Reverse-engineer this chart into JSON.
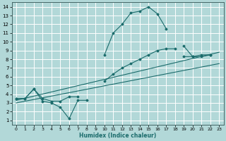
{
  "background_color": "#b2d8d8",
  "grid_color": "#ffffff",
  "line_color": "#1a6b6b",
  "xlabel": "Humidex (Indice chaleur)",
  "xlim": [
    -0.5,
    23.5
  ],
  "ylim": [
    0.5,
    14.5
  ],
  "xticks": [
    0,
    1,
    2,
    3,
    4,
    5,
    6,
    7,
    8,
    9,
    10,
    11,
    12,
    13,
    14,
    15,
    16,
    17,
    18,
    19,
    20,
    21,
    22,
    23
  ],
  "yticks": [
    1,
    2,
    3,
    4,
    5,
    6,
    7,
    8,
    9,
    10,
    11,
    12,
    13,
    14
  ],
  "curve1_segments": [
    {
      "x": [
        0,
        1,
        2,
        3,
        4,
        5,
        6,
        7,
        8
      ],
      "y": [
        3.5,
        3.5,
        4.6,
        3.2,
        3.0,
        2.5,
        1.2,
        3.3,
        3.3
      ]
    },
    {
      "x": [
        10,
        11,
        12,
        13,
        14,
        15,
        16,
        17
      ],
      "y": [
        8.5,
        11.0,
        12.0,
        13.3,
        13.5,
        14.0,
        13.2,
        11.5
      ]
    },
    {
      "x": [
        19,
        20,
        21,
        22
      ],
      "y": [
        9.5,
        8.3,
        8.5,
        8.5
      ]
    }
  ],
  "curve2_segments": [
    {
      "x": [
        0,
        1,
        2,
        3,
        4,
        5,
        6,
        7
      ],
      "y": [
        3.5,
        3.5,
        4.6,
        3.5,
        3.2,
        3.2,
        3.7,
        3.7
      ]
    },
    {
      "x": [
        10,
        11,
        12,
        13,
        14,
        15,
        16,
        17,
        18
      ],
      "y": [
        5.5,
        6.3,
        7.0,
        7.5,
        8.0,
        8.5,
        9.0,
        9.2,
        9.2
      ]
    },
    {
      "x": [
        19,
        20,
        21,
        22
      ],
      "y": [
        8.3,
        8.3,
        8.3,
        8.5
      ]
    }
  ],
  "line1": {
    "x": [
      0,
      23
    ],
    "y": [
      3.3,
      8.8
    ]
  },
  "line2": {
    "x": [
      0,
      23
    ],
    "y": [
      3.0,
      7.5
    ]
  }
}
